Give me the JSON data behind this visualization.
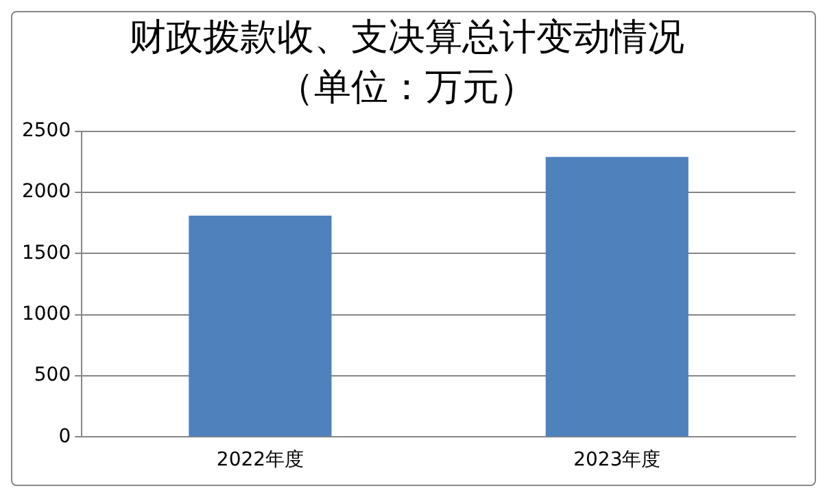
{
  "chart_data": {
    "type": "bar",
    "title": "财政拨款收、支决算总计变动情况",
    "subtitle": "（单位：万元）",
    "categories": [
      "2022年度",
      "2023年度"
    ],
    "values": [
      1810,
      2290
    ],
    "color": "#4f81bd",
    "ylim": [
      0,
      2500
    ],
    "yticks": [
      0,
      500,
      1000,
      1500,
      2000,
      2500
    ],
    "grid": "y"
  }
}
